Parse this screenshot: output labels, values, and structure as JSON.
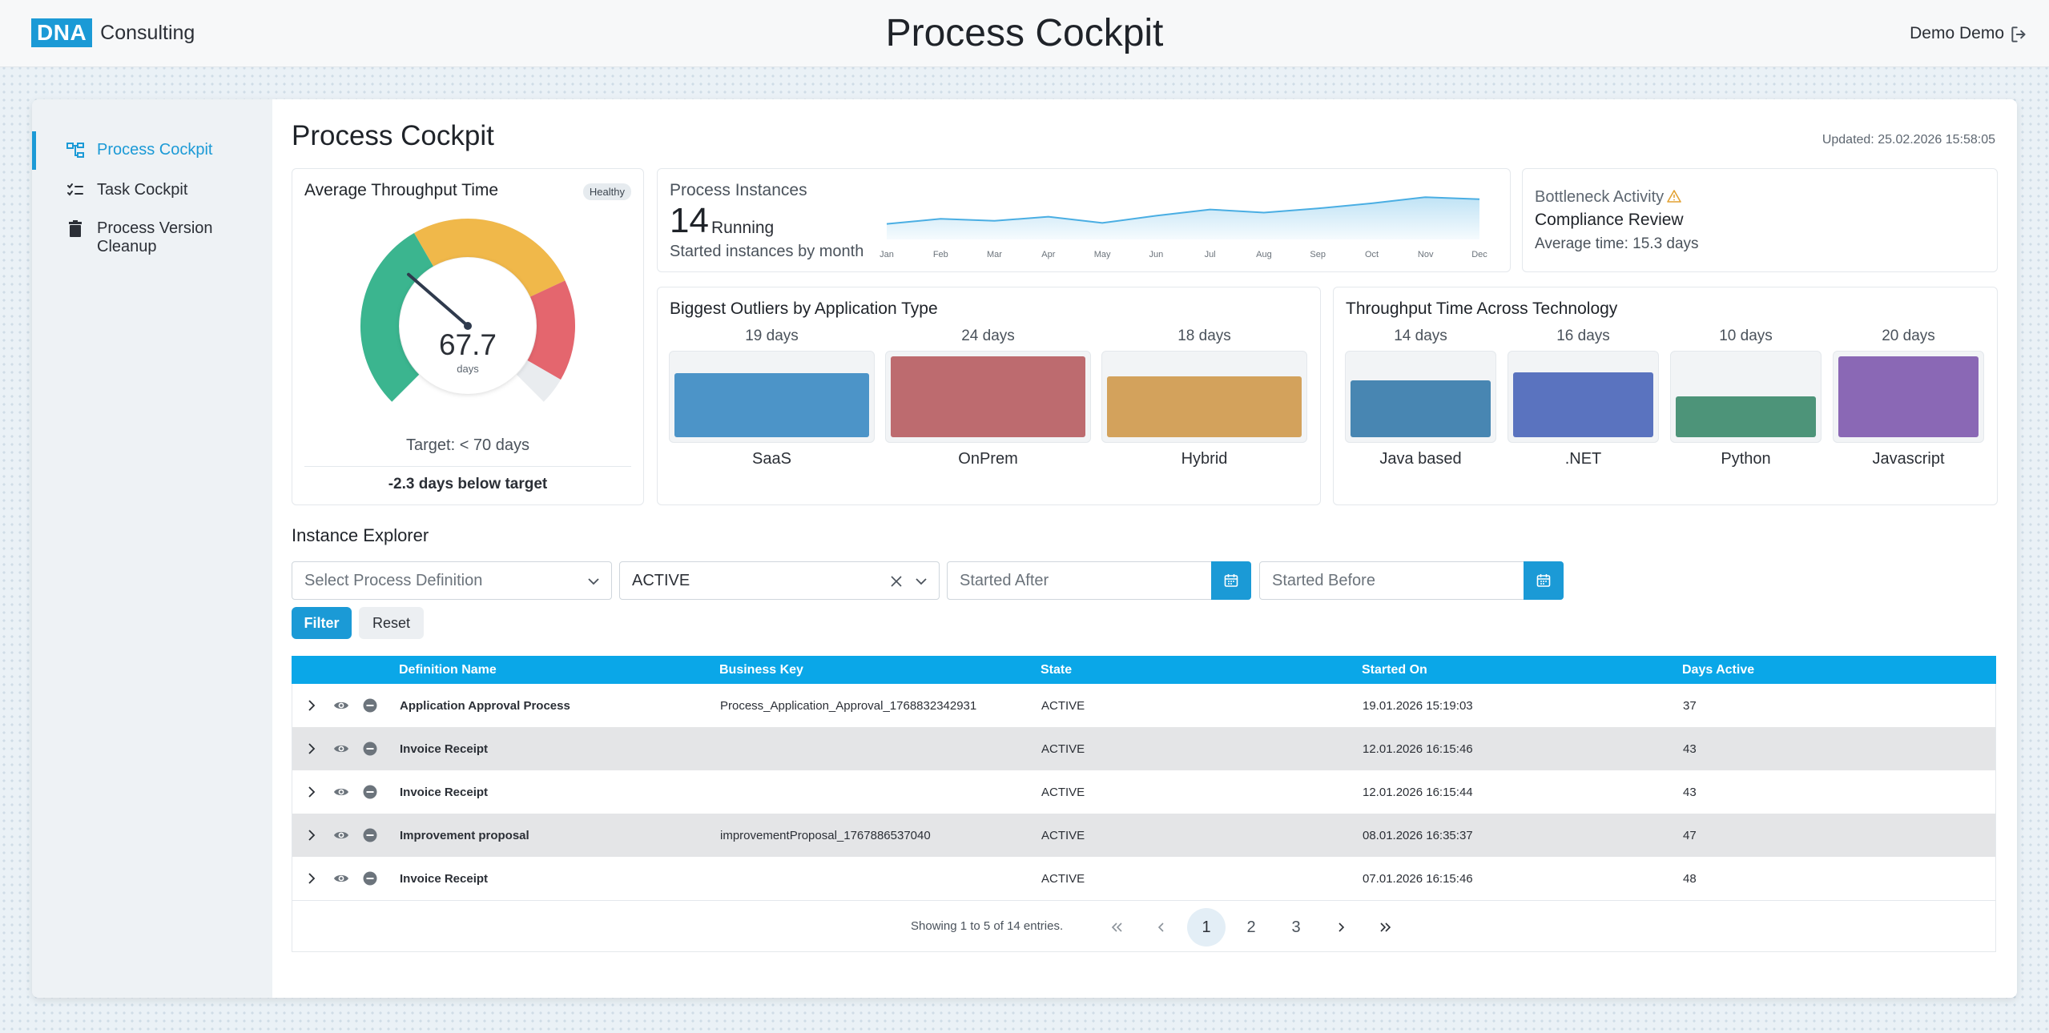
{
  "header": {
    "logo_mark": "DNA",
    "logo_text": "Consulting",
    "title": "Process Cockpit",
    "user": "Demo Demo"
  },
  "sidebar": {
    "items": [
      {
        "label": "Process Cockpit",
        "icon": "process-tree-icon",
        "active": true
      },
      {
        "label": "Task Cockpit",
        "icon": "checklist-icon",
        "active": false
      },
      {
        "label": "Process Version Cleanup",
        "icon": "trash-icon",
        "active": false
      }
    ]
  },
  "main": {
    "title": "Process Cockpit",
    "updated": "Updated: 25.02.2026 15:58:05"
  },
  "throughput": {
    "title": "Average Throughput Time",
    "badge": "Healthy",
    "value": "67.7",
    "unit": "days",
    "target": "Target: < 70 days",
    "delta": "-2.3 days below target",
    "colors": {
      "green": "#3bb58f",
      "yellow": "#f0b84a",
      "red": "#e4666e",
      "track": "#e9ecef"
    }
  },
  "instances": {
    "title": "Process Instances",
    "count": "14",
    "running": "Running",
    "subtitle": "Started instances by month",
    "months": [
      "Jan",
      "Feb",
      "Mar",
      "Apr",
      "May",
      "Jun",
      "Jul",
      "Aug",
      "Sep",
      "Oct",
      "Nov",
      "Dec"
    ],
    "values": [
      3.0,
      4.0,
      3.6,
      4.4,
      3.2,
      4.6,
      5.8,
      5.2,
      6.0,
      7.0,
      8.2,
      7.8
    ],
    "color": "#4aaee3"
  },
  "bottleneck": {
    "title": "Bottleneck Activity",
    "activity": "Compliance Review",
    "average": "Average time: 15.3 days"
  },
  "outliers": {
    "title": "Biggest Outliers by Application Type",
    "max": 24,
    "items": [
      {
        "value_label": "19 days",
        "label": "SaaS",
        "value": 19,
        "color": "#4c94c8"
      },
      {
        "value_label": "24 days",
        "label": "OnPrem",
        "value": 24,
        "color": "#bd6b6f"
      },
      {
        "value_label": "18 days",
        "label": "Hybrid",
        "value": 18,
        "color": "#d3a25c"
      }
    ]
  },
  "technology": {
    "title": "Throughput Time Across Technology",
    "max": 20,
    "items": [
      {
        "value_label": "14 days",
        "label": "Java based",
        "value": 14,
        "color": "#4886b2"
      },
      {
        "value_label": "16 days",
        "label": ".NET",
        "value": 16,
        "color": "#5a73bf"
      },
      {
        "value_label": "10 days",
        "label": "Python",
        "value": 10,
        "color": "#4d9479"
      },
      {
        "value_label": "20 days",
        "label": "Javascript",
        "value": 20,
        "color": "#8a68b5"
      }
    ]
  },
  "explorer": {
    "title": "Instance Explorer",
    "definition_placeholder": "Select Process Definition",
    "state_value": "ACTIVE",
    "started_after_placeholder": "Started After",
    "started_before_placeholder": "Started Before",
    "filter_label": "Filter",
    "reset_label": "Reset"
  },
  "table": {
    "columns": [
      "Definition Name",
      "Business Key",
      "State",
      "Started On",
      "Days Active"
    ],
    "rows": [
      {
        "name": "Application Approval Process",
        "key": "Process_Application_Approval_1768832342931",
        "state": "ACTIVE",
        "started": "19.01.2026 15:19:03",
        "days": "37"
      },
      {
        "name": "Invoice Receipt",
        "key": "",
        "state": "ACTIVE",
        "started": "12.01.2026 16:15:46",
        "days": "43"
      },
      {
        "name": "Invoice Receipt",
        "key": "",
        "state": "ACTIVE",
        "started": "12.01.2026 16:15:44",
        "days": "43"
      },
      {
        "name": "Improvement proposal",
        "key": "improvementProposal_1767886537040",
        "state": "ACTIVE",
        "started": "08.01.2026 16:35:37",
        "days": "47"
      },
      {
        "name": "Invoice Receipt",
        "key": "",
        "state": "ACTIVE",
        "started": "07.01.2026 16:15:46",
        "days": "48"
      }
    ],
    "showing": "Showing 1 to 5 of 14 entries.",
    "pages": [
      "1",
      "2",
      "3"
    ],
    "current_page": "1"
  }
}
